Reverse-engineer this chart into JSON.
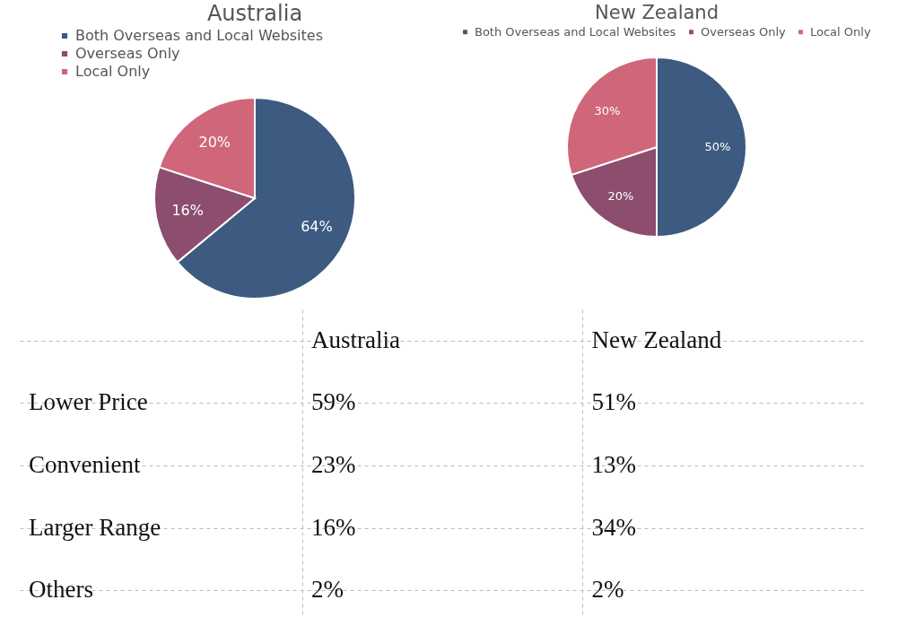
{
  "chart_data": [
    {
      "type": "pie",
      "title": "Australia",
      "categories": [
        "Both Overseas and Local Websites",
        "Overseas Only",
        "Local Only"
      ],
      "values": [
        64,
        16,
        20
      ],
      "value_labels": [
        "64%",
        "16%",
        "20%"
      ],
      "colors": [
        "#3d5a80",
        "#8c4d6f",
        "#cf6679"
      ],
      "legend": "top left"
    },
    {
      "type": "pie",
      "title": "New Zealand",
      "categories": [
        "Both Overseas and Local Websites",
        "Overseas Only",
        "Local Only"
      ],
      "values": [
        50,
        20,
        30
      ],
      "value_labels": [
        "50%",
        "20%",
        "30%"
      ],
      "colors": [
        "#3d5a80",
        "#8c4d6f",
        "#cf6679"
      ],
      "legend": "top"
    },
    {
      "type": "other",
      "categories": [
        "Lower Price",
        "Convenient",
        "Larger Range",
        "Others"
      ],
      "series": [
        {
          "name": "Australia",
          "values": [
            59,
            23,
            16,
            2
          ],
          "value_labels": [
            "59%",
            "23%",
            "16%",
            "2%"
          ]
        },
        {
          "name": "New Zealand",
          "values": [
            51,
            13,
            34,
            2
          ],
          "value_labels": [
            "51%",
            "13%",
            "34%",
            "2%"
          ]
        }
      ]
    }
  ]
}
